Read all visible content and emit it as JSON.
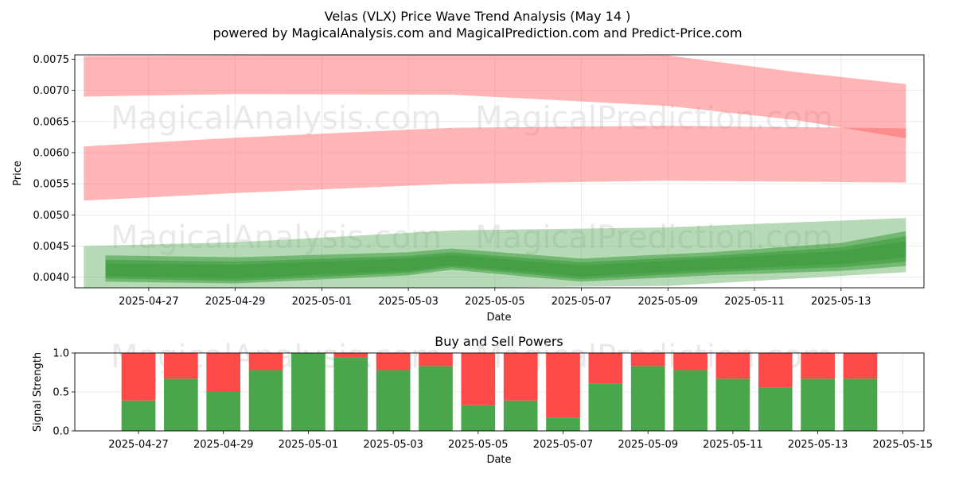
{
  "title_line1": "Velas (VLX) Price Wave Trend Analysis (May 14 )",
  "title_line2": "powered by MagicalAnalysis.com and MagicalPrediction.com and Predict-Price.com",
  "watermarks": [
    "MagicalAnalysis.com",
    "MagicalPrediction.com"
  ],
  "colors": {
    "sell": "#ff4a4a",
    "buy": "#4aa64a",
    "price_red": "#ff9b9b",
    "price_green": "#7fc47f"
  },
  "chart_data": [
    {
      "type": "area",
      "xlabel": "Date",
      "ylabel": "Price",
      "x_ticks": [
        "2025-04-27",
        "2025-04-29",
        "2025-05-01",
        "2025-05-03",
        "2025-05-05",
        "2025-05-07",
        "2025-05-09",
        "2025-05-11",
        "2025-05-13"
      ],
      "y_ticks": [
        "0.0040",
        "0.0045",
        "0.0050",
        "0.0055",
        "0.0060",
        "0.0065",
        "0.0070",
        "0.0075"
      ],
      "xlim": [
        "2025-04-25T07:00",
        "2025-05-14T22:00"
      ],
      "ylim": [
        0.00383,
        0.00757
      ],
      "grid": true,
      "bands": [
        {
          "color": "red",
          "x": [
            "2025-04-25T12:00",
            "2025-04-29",
            "2025-05-04",
            "2025-05-09",
            "2025-05-12",
            "2025-05-14T12:00"
          ],
          "upper": [
            0.00755,
            0.00756,
            0.00757,
            0.00756,
            0.00729,
            0.0071
          ],
          "lower": [
            0.0069,
            0.00694,
            0.00693,
            0.00675,
            0.00652,
            0.00623
          ]
        },
        {
          "color": "red",
          "x": [
            "2025-04-25T12:00",
            "2025-04-29",
            "2025-05-04",
            "2025-05-09",
            "2025-05-14T12:00"
          ],
          "upper": [
            0.0061,
            0.00624,
            0.0064,
            0.00643,
            0.00639
          ],
          "lower": [
            0.00523,
            0.00535,
            0.0055,
            0.00555,
            0.00552
          ]
        },
        {
          "color": "green",
          "x": [
            "2025-04-25T12:00",
            "2025-04-29",
            "2025-05-04",
            "2025-05-09",
            "2025-05-14T12:00"
          ],
          "upper": [
            0.0045,
            0.00456,
            0.00475,
            0.0048,
            0.00495
          ],
          "lower": [
            0.00383,
            0.00383,
            0.00383,
            0.00386,
            0.00408
          ]
        },
        {
          "color": "green",
          "x": [
            "2025-04-26",
            "2025-04-29",
            "2025-05-03",
            "2025-05-04",
            "2025-05-07",
            "2025-05-10",
            "2025-05-13",
            "2025-05-14T12:00"
          ],
          "upper": [
            0.00435,
            0.00432,
            0.0044,
            0.00446,
            0.0043,
            0.0044,
            0.00455,
            0.00474
          ],
          "lower": [
            0.00393,
            0.0039,
            0.00403,
            0.00412,
            0.00393,
            0.00403,
            0.0041,
            0.00418
          ]
        },
        {
          "color": "green",
          "x": [
            "2025-04-26",
            "2025-04-29",
            "2025-05-03",
            "2025-05-04",
            "2025-05-07",
            "2025-05-10",
            "2025-05-13",
            "2025-05-14T12:00"
          ],
          "upper": [
            0.00428,
            0.00425,
            0.00434,
            0.0044,
            0.00424,
            0.00434,
            0.00448,
            0.00466
          ],
          "lower": [
            0.00398,
            0.00394,
            0.00407,
            0.00416,
            0.00397,
            0.00408,
            0.00416,
            0.00425
          ]
        },
        {
          "color": "green",
          "x": [
            "2025-04-26",
            "2025-04-29",
            "2025-05-03",
            "2025-05-04",
            "2025-05-07",
            "2025-05-10",
            "2025-05-13",
            "2025-05-14T12:00"
          ],
          "upper": [
            0.00422,
            0.0042,
            0.0043,
            0.00436,
            0.00419,
            0.0043,
            0.00442,
            0.00458
          ],
          "lower": [
            0.00402,
            0.00398,
            0.0041,
            0.00419,
            0.00401,
            0.00412,
            0.00421,
            0.00432
          ]
        }
      ]
    },
    {
      "type": "bar",
      "title": "Buy and Sell Powers",
      "xlabel": "Date",
      "ylabel": "Signal Strength",
      "x_ticks": [
        "2025-04-27",
        "2025-04-29",
        "2025-05-01",
        "2025-05-03",
        "2025-05-05",
        "2025-05-07",
        "2025-05-09",
        "2025-05-11",
        "2025-05-13",
        "2025-05-15"
      ],
      "y_ticks": [
        "0.0",
        "0.5",
        "1.0"
      ],
      "ylim": [
        0,
        1
      ],
      "xlim": [
        "2025-04-25T12:00",
        "2025-05-15T12:00"
      ],
      "grid": true,
      "dates": [
        "2025-04-27",
        "2025-04-28",
        "2025-04-29",
        "2025-04-30",
        "2025-05-01",
        "2025-05-02",
        "2025-05-03",
        "2025-05-04",
        "2025-05-05",
        "2025-05-06",
        "2025-05-07",
        "2025-05-08",
        "2025-05-09",
        "2025-05-10",
        "2025-05-11",
        "2025-05-12",
        "2025-05-13",
        "2025-05-14"
      ],
      "buy": [
        0.39,
        0.67,
        0.5,
        0.78,
        1.0,
        0.94,
        0.78,
        0.83,
        0.33,
        0.39,
        0.17,
        0.61,
        0.83,
        0.78,
        0.67,
        0.56,
        0.67,
        0.67
      ],
      "total": 1.0
    }
  ]
}
